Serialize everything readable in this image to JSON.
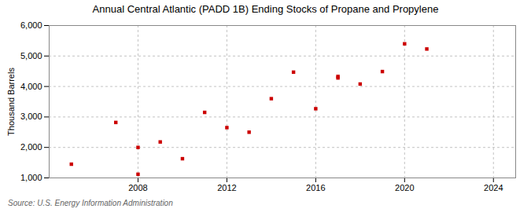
{
  "chart_data": {
    "type": "scatter",
    "title": "Annual Central Atlantic (PADD 1B) Ending Stocks of Propane and Propylene",
    "ylabel": "Thousand Barrels",
    "annotations": [
      "Source: U.S. Energy Information Administration"
    ],
    "x": [
      2005,
      2007,
      2008,
      2008,
      2009,
      2010,
      2011,
      2012,
      2013,
      2014,
      2015,
      2016,
      2017,
      2017,
      2018,
      2019,
      2020,
      2021
    ],
    "values": [
      1450,
      2820,
      2000,
      1120,
      2180,
      1630,
      3150,
      2650,
      2500,
      3600,
      4470,
      3270,
      4330,
      4280,
      4080,
      4490,
      5400,
      5230
    ],
    "color": "#cc0000",
    "marker": "square",
    "xlim": [
      2004,
      2025
    ],
    "ylim": [
      1000,
      6000
    ],
    "xticks": [
      2008,
      2012,
      2016,
      2020,
      2024
    ],
    "yticks": [
      {
        "value": 1000,
        "label": "1,000"
      },
      {
        "value": 2000,
        "label": "2,000"
      },
      {
        "value": 3000,
        "label": "3,000"
      },
      {
        "value": 4000,
        "label": "4,000"
      },
      {
        "value": 5000,
        "label": "5,000"
      },
      {
        "value": 6000,
        "label": "6,000"
      }
    ],
    "grid": true
  }
}
